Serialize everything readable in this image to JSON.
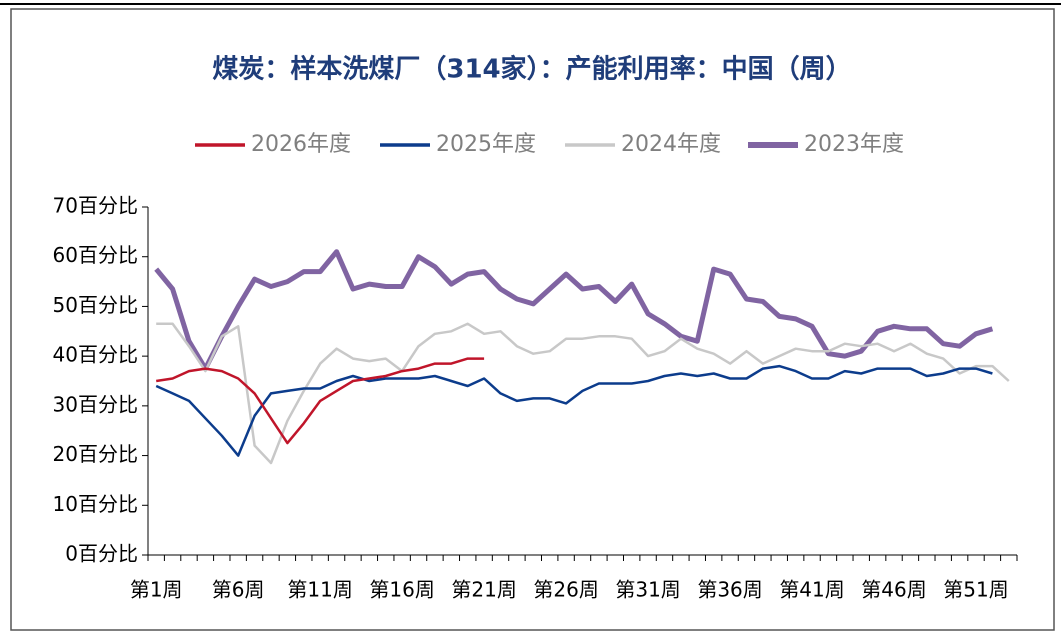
{
  "chart_data": {
    "type": "line",
    "title": "煤炭：样本洗煤厂（314家）：产能利用率：中国（周）",
    "categories": [
      "第1周",
      null,
      null,
      null,
      null,
      "第6周",
      null,
      null,
      null,
      null,
      "第11周",
      null,
      null,
      null,
      null,
      "第16周",
      null,
      null,
      null,
      null,
      "第21周",
      null,
      null,
      null,
      null,
      "第26周",
      null,
      null,
      null,
      null,
      "第31周",
      null,
      null,
      null,
      null,
      "第36周",
      null,
      null,
      null,
      null,
      "第41周",
      null,
      null,
      null,
      null,
      "第46周",
      null,
      null,
      null,
      null,
      "第51周",
      null,
      null
    ],
    "series": [
      {
        "name": "2026年度",
        "color": "#c0152a",
        "width": 2.5,
        "values": [
          35,
          35.5,
          37,
          37.5,
          37,
          35.5,
          32.5,
          27.5,
          22.5,
          26.5,
          31,
          33,
          35,
          35.5,
          36,
          37,
          37.5,
          38.5,
          38.5,
          39.5,
          39.5,
          null,
          null,
          null,
          null,
          null,
          null,
          null,
          null,
          null,
          null,
          null,
          null,
          null,
          null,
          null,
          null,
          null,
          null,
          null,
          null,
          null,
          null,
          null,
          null,
          null,
          null,
          null,
          null,
          null,
          null,
          null,
          null
        ]
      },
      {
        "name": "2025年度",
        "color": "#0c3c8c",
        "width": 2.5,
        "values": [
          34,
          32.5,
          31,
          27.5,
          24,
          20,
          28,
          32.5,
          33,
          33.5,
          33.5,
          35,
          36,
          35,
          35.5,
          35.5,
          35.5,
          36,
          35,
          34,
          35.5,
          32.5,
          31,
          31.5,
          31.5,
          30.5,
          33,
          34.5,
          34.5,
          34.5,
          35,
          36,
          36.5,
          36,
          36.5,
          35.5,
          35.5,
          37.5,
          38,
          37,
          35.5,
          35.5,
          37,
          36.5,
          37.5,
          37.5,
          37.5,
          36,
          36.5,
          37.5,
          37.5,
          36.5,
          null
        ]
      },
      {
        "name": "2024年度",
        "color": "#c8c8c8",
        "width": 2.5,
        "values": [
          46.5,
          46.5,
          42,
          37,
          44,
          46,
          22,
          18.5,
          27,
          33,
          38.5,
          41.5,
          39.5,
          39,
          39.5,
          37,
          42,
          44.5,
          45,
          46.5,
          44.5,
          45,
          42,
          40.5,
          41,
          43.5,
          43.5,
          44,
          44,
          43.5,
          40,
          41,
          43.5,
          41.5,
          40.5,
          38.5,
          41,
          38.5,
          40,
          41.5,
          41,
          41,
          42.5,
          42,
          42.5,
          41,
          42.5,
          40.5,
          39.5,
          36.5,
          38,
          38,
          35
        ]
      },
      {
        "name": "2023年度",
        "color": "#8064a2",
        "width": 5,
        "values": [
          57.5,
          53.5,
          43,
          37.5,
          44,
          50,
          55.5,
          54,
          55,
          57,
          57,
          61,
          53.5,
          54.5,
          54,
          54,
          60,
          58,
          54.5,
          56.5,
          57,
          53.5,
          51.5,
          50.5,
          53.5,
          56.5,
          53.5,
          54,
          51,
          54.5,
          48.5,
          46.5,
          44,
          43,
          57.5,
          56.5,
          51.5,
          51,
          48,
          47.5,
          46,
          40.5,
          40,
          41,
          45,
          46,
          45.5,
          45.5,
          42.5,
          42,
          44.5,
          45.5,
          null
        ]
      }
    ],
    "ylim": [
      0,
      70
    ],
    "yticks": [
      {
        "value": 0,
        "label": "0百分比"
      },
      {
        "value": 10,
        "label": "10百分比"
      },
      {
        "value": 20,
        "label": "20百分比"
      },
      {
        "value": 30,
        "label": "30百分比"
      },
      {
        "value": 40,
        "label": "40百分比"
      },
      {
        "value": 50,
        "label": "50百分比"
      },
      {
        "value": 60,
        "label": "60百分比"
      },
      {
        "value": 70,
        "label": "70百分比"
      }
    ],
    "grid": false
  }
}
